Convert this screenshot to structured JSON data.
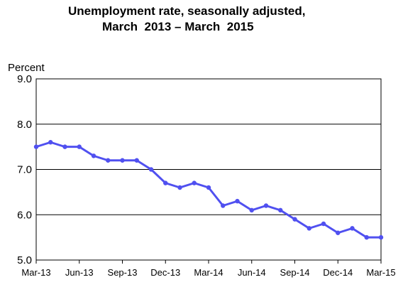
{
  "chart_data": {
    "type": "line",
    "title_line1": "Unemployment rate, seasonally adjusted,",
    "title_line2": "March  2013 – March  2015",
    "ylabel": "Percent",
    "xlabel": "",
    "ylim": [
      5.0,
      9.0
    ],
    "yticks": [
      "9.0",
      "8.0",
      "7.0",
      "6.0",
      "5.0"
    ],
    "ytick_values": [
      9,
      8,
      7,
      6,
      5
    ],
    "grid": "horizontal",
    "line_color": "#5050f0",
    "x_tick_labels": [
      {
        "label": "Mar-13",
        "index": 0
      },
      {
        "label": "Jun-13",
        "index": 3
      },
      {
        "label": "Sep-13",
        "index": 6
      },
      {
        "label": "Dec-13",
        "index": 9
      },
      {
        "label": "Mar-14",
        "index": 12
      },
      {
        "label": "Jun-14",
        "index": 15
      },
      {
        "label": "Sep-14",
        "index": 18
      },
      {
        "label": "Dec-14",
        "index": 21
      },
      {
        "label": "Mar-15",
        "index": 24
      }
    ],
    "series": [
      {
        "values": [
          7.5,
          7.6,
          7.5,
          7.5,
          7.3,
          7.2,
          7.2,
          7.2,
          7.0,
          6.7,
          6.6,
          6.7,
          6.6,
          6.2,
          6.3,
          6.1,
          6.2,
          6.1,
          5.9,
          5.7,
          5.8,
          5.6,
          5.7,
          5.5,
          5.5
        ]
      }
    ]
  }
}
